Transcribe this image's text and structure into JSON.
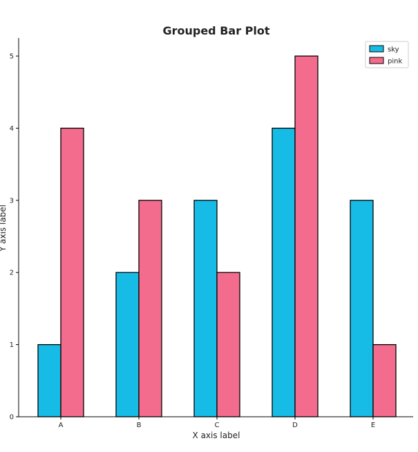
{
  "chart_data": {
    "type": "bar",
    "title": "Grouped Bar Plot",
    "xlabel": "X axis label",
    "ylabel": "Y axis label",
    "categories": [
      "A",
      "B",
      "C",
      "D",
      "E"
    ],
    "series": [
      {
        "name": "sky",
        "color": "#17BCE6",
        "values": [
          1,
          2,
          3,
          4,
          3
        ]
      },
      {
        "name": "pink",
        "color": "#F36C8D",
        "values": [
          4,
          3,
          2,
          5,
          1
        ]
      }
    ],
    "ylim": [
      0,
      5.25
    ],
    "yticks": [
      0,
      1,
      2,
      3,
      4,
      5
    ],
    "legend_position": "top-right",
    "grid": false
  }
}
